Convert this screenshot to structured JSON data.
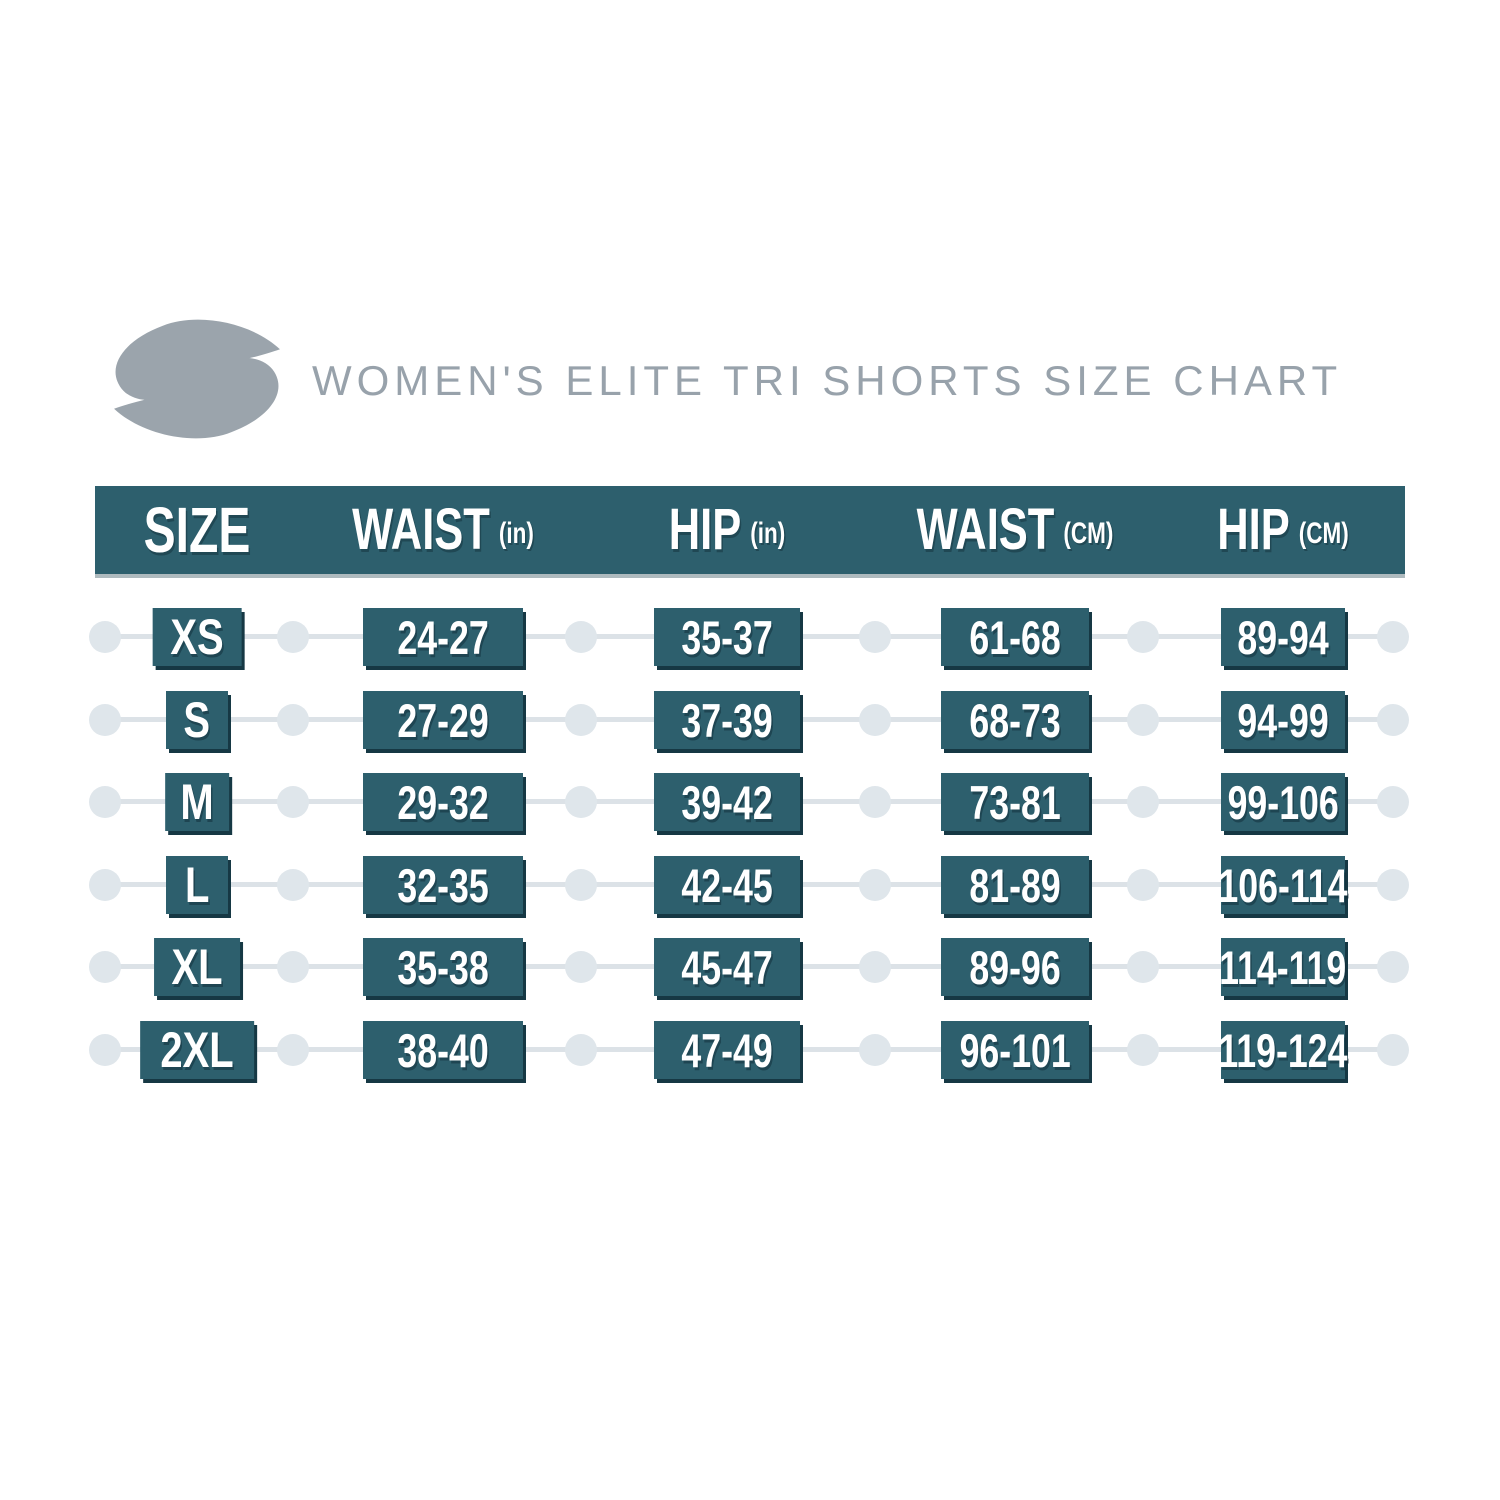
{
  "title": "WOMEN'S ELITE TRI SHORTS SIZE CHART",
  "logo": {
    "name": "s-swoosh-logo"
  },
  "chart_data": {
    "type": "table",
    "title": "WOMEN'S ELITE TRI SHORTS SIZE CHART",
    "columns": [
      {
        "label": "SIZE",
        "unit": ""
      },
      {
        "label": "WAIST",
        "unit": "(in)"
      },
      {
        "label": "HIP",
        "unit": "(in)"
      },
      {
        "label": "WAIST",
        "unit": "(CM)"
      },
      {
        "label": "HIP",
        "unit": "(CM)"
      }
    ],
    "rows": [
      {
        "size": "XS",
        "waist_in": "24-27",
        "hip_in": "35-37",
        "waist_cm": "61-68",
        "hip_cm": "89-94"
      },
      {
        "size": "S",
        "waist_in": "27-29",
        "hip_in": "37-39",
        "waist_cm": "68-73",
        "hip_cm": "94-99"
      },
      {
        "size": "M",
        "waist_in": "29-32",
        "hip_in": "39-42",
        "waist_cm": "73-81",
        "hip_cm": "99-106"
      },
      {
        "size": "L",
        "waist_in": "32-35",
        "hip_in": "42-45",
        "waist_cm": "81-89",
        "hip_cm": "106-114"
      },
      {
        "size": "XL",
        "waist_in": "35-38",
        "hip_in": "45-47",
        "waist_cm": "89-96",
        "hip_cm": "114-119"
      },
      {
        "size": "2XL",
        "waist_in": "38-40",
        "hip_in": "47-49",
        "waist_cm": "96-101",
        "hip_cm": "119-124"
      }
    ]
  },
  "colors": {
    "teal": "#2d5f6d",
    "shadow": "#163844",
    "line": "#dce2e7",
    "dot": "#dfe6eb",
    "title_gray": "#98a2ab",
    "logo_gray": "#9ba4ac",
    "text_white": "#ffffff"
  }
}
